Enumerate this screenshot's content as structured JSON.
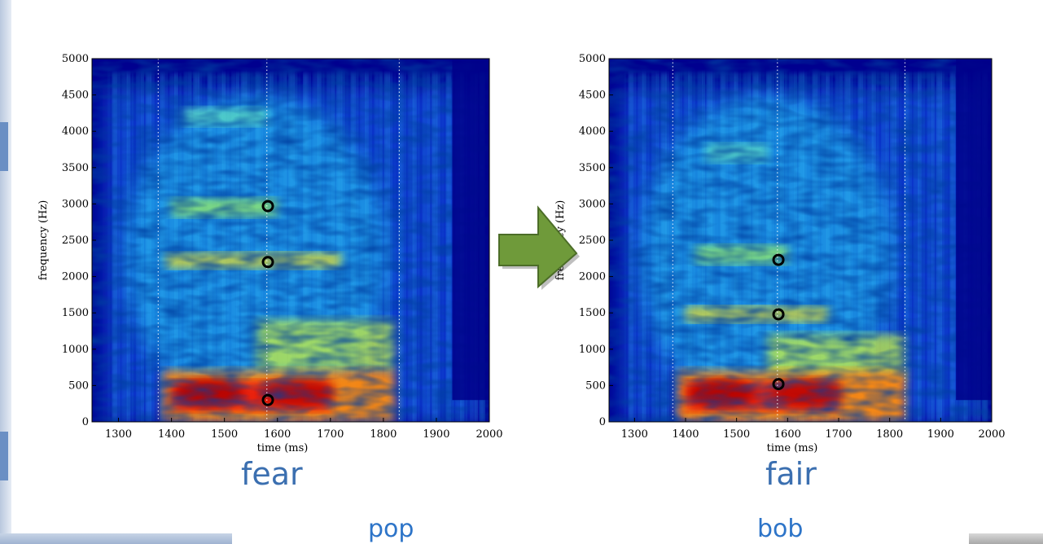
{
  "captions": {
    "left_word": "fear",
    "right_word": "fair",
    "left_under": "pop",
    "right_under": "bob"
  },
  "colors": {
    "caption": "#3b6fb0",
    "arrow_fill": "#6f9a3a",
    "arrow_stroke": "#4c6d28",
    "background_spectrogram": "#00008f"
  },
  "chart_data": [
    {
      "type": "heatmap",
      "title": "",
      "xlabel": "time (ms)",
      "ylabel": "frequency (Hz)",
      "xlim": [
        1250,
        2000
      ],
      "ylim": [
        0,
        5000
      ],
      "x_ticks": [
        1300,
        1400,
        1500,
        1600,
        1700,
        1800,
        1900,
        2000
      ],
      "y_ticks": [
        0,
        500,
        1000,
        1500,
        2000,
        2500,
        3000,
        3500,
        4000,
        4500,
        5000
      ],
      "segment_boundaries_ms": [
        1375,
        1580,
        1830
      ],
      "formant_markers": [
        {
          "x": 1582,
          "y": 2970
        },
        {
          "x": 1582,
          "y": 2200
        },
        {
          "x": 1582,
          "y": 300
        }
      ]
    },
    {
      "type": "heatmap",
      "title": "",
      "xlabel": "time (ms)",
      "ylabel": "frequency (Hz)",
      "xlim": [
        1250,
        2000
      ],
      "ylim": [
        0,
        5000
      ],
      "x_ticks": [
        1300,
        1400,
        1500,
        1600,
        1700,
        1800,
        1900,
        2000
      ],
      "y_ticks": [
        0,
        500,
        1000,
        1500,
        2000,
        2500,
        3000,
        3500,
        4000,
        4500,
        5000
      ],
      "segment_boundaries_ms": [
        1375,
        1580,
        1830
      ],
      "formant_markers": [
        {
          "x": 1582,
          "y": 2230
        },
        {
          "x": 1582,
          "y": 1480
        },
        {
          "x": 1582,
          "y": 520
        }
      ]
    }
  ]
}
